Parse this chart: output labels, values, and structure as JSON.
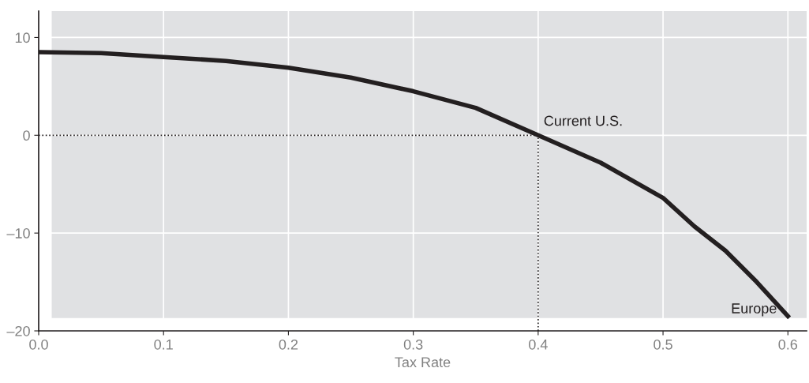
{
  "chart_data": {
    "type": "line",
    "xlabel": "Tax Rate",
    "x": [
      0,
      0.05,
      0.1,
      0.15,
      0.2,
      0.25,
      0.3,
      0.35,
      0.4,
      0.45,
      0.5,
      0.525,
      0.55,
      0.575,
      0.6
    ],
    "series": [
      {
        "color": "#231f20",
        "values": [
          8.5,
          8.4,
          8.0,
          7.6,
          6.9,
          5.9,
          4.5,
          2.8,
          0,
          -2.8,
          -6.4,
          -9.3,
          -11.8,
          -15.0,
          -18.5
        ]
      }
    ],
    "xlim": [
      0,
      0.615
    ],
    "ylim": [
      -20,
      12.7
    ],
    "xticks": [
      {
        "value": 0,
        "label": "0.0"
      },
      0.1,
      0.2,
      0.3,
      0.4,
      0.5,
      0.6
    ],
    "yticks": [
      {
        "value": -20,
        "label": "–20"
      },
      {
        "value": -10,
        "label": "–10"
      },
      0,
      10
    ],
    "grid": true,
    "marker": "none",
    "line_style": "solid",
    "ref_lines": [
      {
        "axis": "y",
        "value": 0,
        "color": "#231f20",
        "line_style": "dotted"
      },
      {
        "axis": "x",
        "value": 0.4,
        "color": "#231f20",
        "line_style": "dotted"
      }
    ],
    "annotations": [
      {
        "text": "Current U.S.",
        "x": 0.4,
        "y": 0
      },
      {
        "text": "Europe",
        "x": 0.6,
        "y": -18.5
      }
    ]
  }
}
